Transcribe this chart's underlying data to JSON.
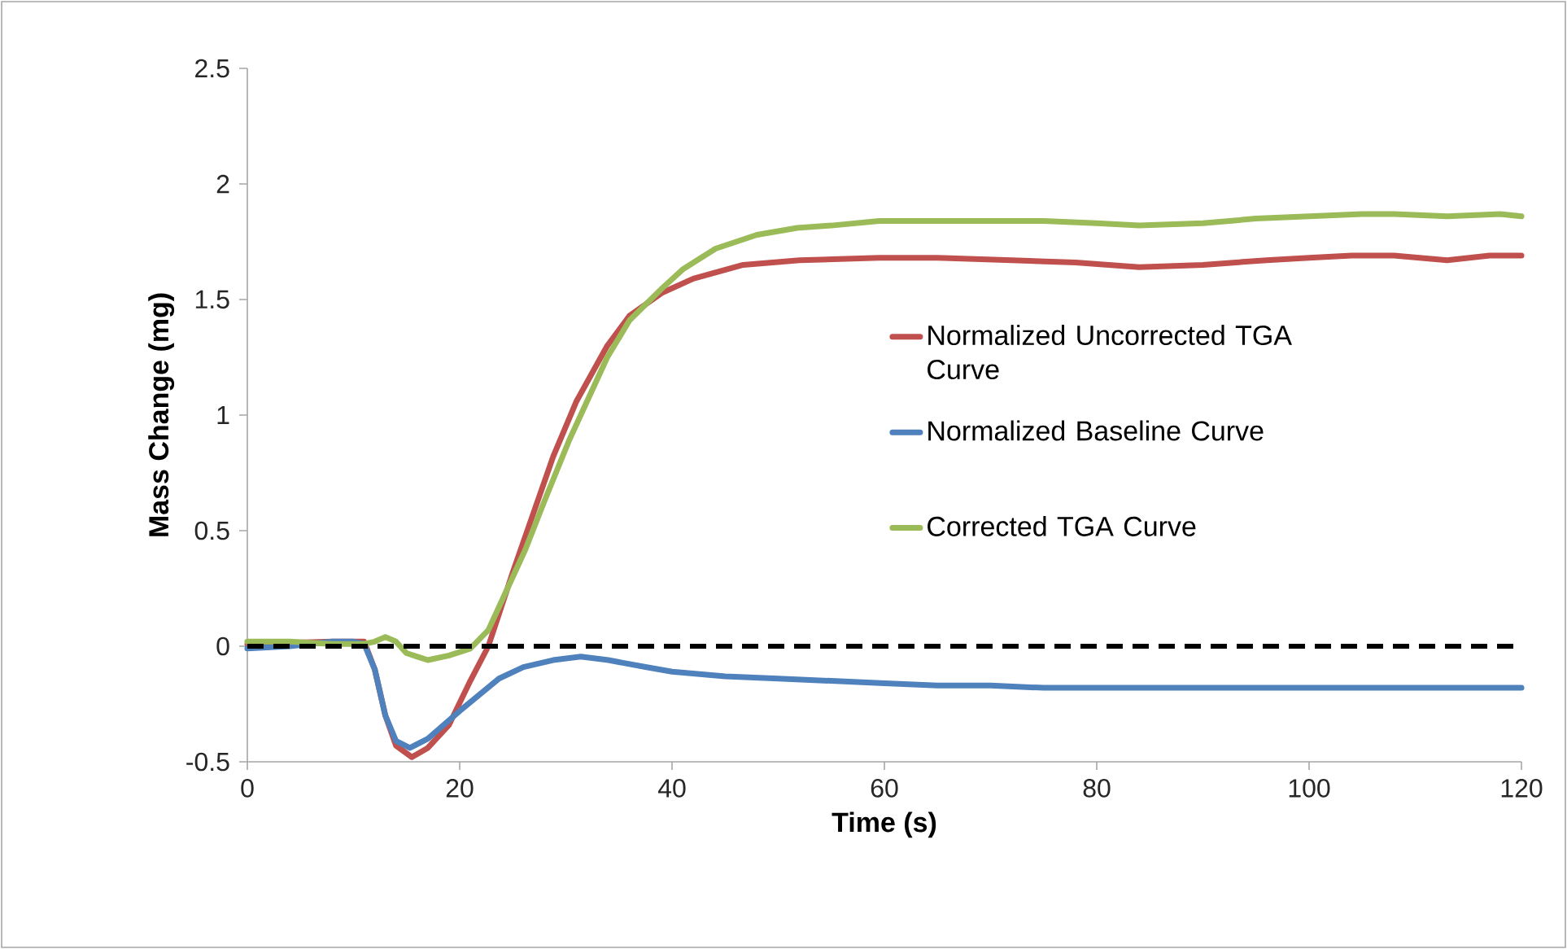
{
  "chart_data": {
    "type": "line",
    "xlabel": "Time (s)",
    "ylabel": "Mass Change (mg)",
    "xlim": [
      0,
      120
    ],
    "xticks": [
      0,
      20,
      40,
      60,
      80,
      100,
      120
    ],
    "ylim": [
      -0.5,
      2.5
    ],
    "yticks": [
      -0.5,
      0,
      0.5,
      1,
      1.5,
      2,
      2.5
    ],
    "grid": false,
    "legend": "right",
    "marker": "none",
    "line_style": "solid",
    "ref_lines": [
      {
        "axis": "y",
        "value": 0,
        "color": "#000000",
        "line_style": "dashed"
      }
    ],
    "series": [
      {
        "name": "Normalized Uncorrected TGA Curve",
        "color": "#c0504d",
        "x": [
          0,
          4,
          8,
          10,
          11,
          12,
          13,
          14,
          15.5,
          17,
          19,
          21,
          22.7,
          25,
          28.8,
          31,
          33.9,
          36,
          39.1,
          42,
          46.7,
          52,
          59.5,
          65,
          72,
          78,
          84,
          90,
          96,
          100,
          104,
          108,
          113,
          117,
          120
        ],
        "values": [
          0.01,
          null,
          0.02,
          0.02,
          0.02,
          -0.1,
          -0.3,
          -0.43,
          -0.48,
          -0.44,
          -0.34,
          -0.15,
          0,
          0.32,
          0.82,
          1.06,
          1.3,
          1.43,
          1.53,
          1.59,
          1.65,
          1.67,
          1.68,
          1.68,
          1.67,
          1.66,
          1.64,
          1.65,
          1.67,
          1.68,
          1.69,
          1.69,
          1.67,
          1.69,
          1.69
        ]
      },
      {
        "name": "Normalized Baseline Curve",
        "color": "#4f81bd",
        "x": [
          0,
          4,
          8,
          10,
          11,
          12,
          13,
          14,
          15.3,
          17,
          20,
          23.7,
          26,
          28.8,
          31.4,
          34,
          37.5,
          40,
          45,
          50,
          55,
          60,
          65,
          70,
          75,
          80,
          90,
          100,
          110,
          120
        ],
        "values": [
          -0.01,
          0,
          0.02,
          0.02,
          0.01,
          -0.1,
          -0.3,
          -0.41,
          -0.44,
          -0.4,
          -0.28,
          -0.14,
          -0.09,
          -0.06,
          -0.045,
          -0.06,
          -0.09,
          -0.11,
          -0.13,
          -0.14,
          -0.15,
          -0.16,
          -0.17,
          -0.17,
          -0.18,
          -0.18,
          -0.18,
          -0.18,
          -0.18,
          -0.18
        ]
      },
      {
        "name": "Corrected TGA Curve",
        "color": "#9bbb59",
        "x": [
          0,
          4,
          8,
          10,
          11,
          12,
          13,
          14,
          15,
          17,
          19,
          21,
          22.7,
          24,
          26.2,
          28,
          30.3,
          33.9,
          36,
          39.1,
          41,
          44.1,
          48,
          51.8,
          55,
          59.5,
          65,
          70,
          75,
          80,
          84,
          90,
          95,
          100,
          105,
          108,
          113,
          118,
          120
        ],
        "values": [
          0.02,
          0.02,
          0.01,
          0.01,
          0.01,
          0.02,
          0.04,
          0.02,
          -0.03,
          -0.06,
          -0.04,
          -0.01,
          0.07,
          0.2,
          0.42,
          0.63,
          0.89,
          1.25,
          1.41,
          1.55,
          1.63,
          1.72,
          1.78,
          1.81,
          1.82,
          1.84,
          1.84,
          1.84,
          1.84,
          1.83,
          1.82,
          1.83,
          1.85,
          1.86,
          1.87,
          1.87,
          1.86,
          1.87,
          1.86
        ]
      }
    ]
  }
}
